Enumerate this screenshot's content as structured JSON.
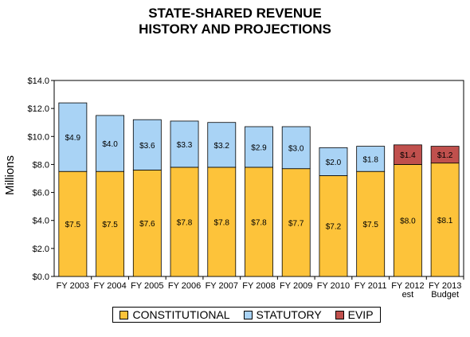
{
  "chart_data": {
    "type": "bar",
    "stacked": true,
    "title": "STATE-SHARED REVENUE",
    "subtitle": "HISTORY AND PROJECTIONS",
    "ylabel": "Millions",
    "xlabel": "",
    "ylim": [
      0,
      14
    ],
    "yticks": [
      "$0.0",
      "$2.0",
      "$4.0",
      "$6.0",
      "$8.0",
      "$10.0",
      "$12.0",
      "$14.0"
    ],
    "categories": [
      [
        "FY 2003"
      ],
      [
        "FY 2004"
      ],
      [
        "FY 2005"
      ],
      [
        "FY 2006"
      ],
      [
        "FY 2007"
      ],
      [
        "FY 2008"
      ],
      [
        "FY 2009"
      ],
      [
        "FY 2010"
      ],
      [
        "FY 2011"
      ],
      [
        "FY 2012",
        "est"
      ],
      [
        "FY 2013",
        "Budget"
      ]
    ],
    "series": [
      {
        "name": "CONSTITUTIONAL",
        "color": "#FDC33A",
        "values": [
          7.5,
          7.5,
          7.6,
          7.8,
          7.8,
          7.8,
          7.7,
          7.2,
          7.5,
          8.0,
          8.1
        ],
        "labels": [
          "$7.5",
          "$7.5",
          "$7.6",
          "$7.8",
          "$7.8",
          "$7.8",
          "$7.7",
          "$7.2",
          "$7.5",
          "$8.0",
          "$8.1"
        ]
      },
      {
        "name": "STATUTORY",
        "color": "#A9D3F5",
        "values": [
          4.9,
          4.0,
          3.6,
          3.3,
          3.2,
          2.9,
          3.0,
          2.0,
          1.8,
          0,
          0
        ],
        "labels": [
          "$4.9",
          "$4.0",
          "$3.6",
          "$3.3",
          "$3.2",
          "$2.9",
          "$3.0",
          "$2.0",
          "$1.8",
          "",
          ""
        ]
      },
      {
        "name": "EVIP",
        "color": "#C0504D",
        "values": [
          0,
          0,
          0,
          0,
          0,
          0,
          0,
          0,
          0,
          1.4,
          1.2
        ],
        "labels": [
          "",
          "",
          "",
          "",
          "",
          "",
          "",
          "",
          "",
          "$1.4",
          "$1.2"
        ]
      }
    ],
    "grid": false,
    "legend_position": "bottom"
  }
}
